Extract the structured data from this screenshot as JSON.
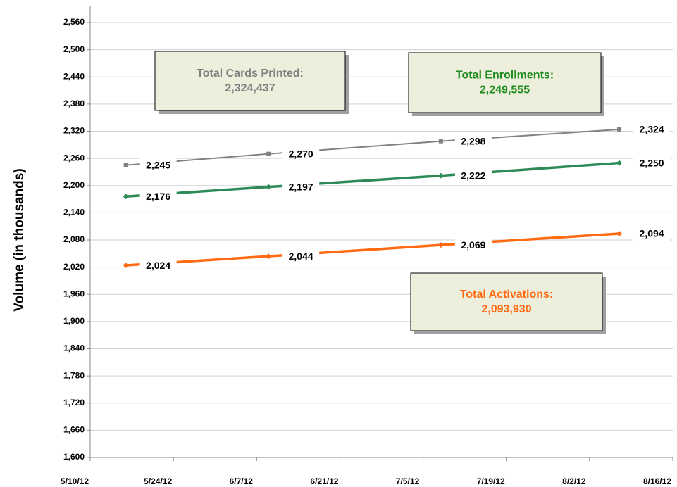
{
  "chart_data": {
    "type": "line",
    "ylabel": "Volume (in thousands)",
    "x": [
      "5/16/12",
      "6/9/12",
      "7/8/12",
      "8/7/12"
    ],
    "xlim": [
      "5/10/12",
      "8/16/12"
    ],
    "xticks": [
      "5/10/12",
      "5/24/12",
      "6/7/12",
      "6/21/12",
      "7/5/12",
      "7/19/12",
      "8/2/12",
      "8/16/12"
    ],
    "ylim": [
      1600,
      2560
    ],
    "yticks": [
      {
        "value": 1600,
        "label": "1,600"
      },
      {
        "value": 1660,
        "label": "1,660"
      },
      {
        "value": 1720,
        "label": "1,720"
      },
      {
        "value": 1780,
        "label": "1,780"
      },
      {
        "value": 1840,
        "label": "1,840"
      },
      {
        "value": 1900,
        "label": "1,900"
      },
      {
        "value": 1960,
        "label": "1,960"
      },
      {
        "value": 2020,
        "label": "2,020"
      },
      {
        "value": 2080,
        "label": "2,080"
      },
      {
        "value": 2140,
        "label": "2,140"
      },
      {
        "value": 2200,
        "label": "2,200"
      },
      {
        "value": 2260,
        "label": "2,260"
      },
      {
        "value": 2320,
        "label": "2,320"
      },
      {
        "value": 2380,
        "label": "2,380"
      },
      {
        "value": 2440,
        "label": "2,440"
      },
      {
        "value": 2500,
        "label": "2,500"
      },
      {
        "value": 2560,
        "label": "2,560"
      }
    ],
    "grid": true,
    "series": [
      {
        "name": "Total Cards Printed",
        "color": "#808080",
        "values": [
          2245,
          2270,
          2298,
          2324
        ],
        "value_labels": [
          "2,245",
          "2,270",
          "2,298",
          "2,324"
        ]
      },
      {
        "name": "Total Enrollments",
        "color": "#2e8b57",
        "values": [
          2176,
          2197,
          2222,
          2250
        ],
        "value_labels": [
          "2,176",
          "2,197",
          "2,222",
          "2,250"
        ]
      },
      {
        "name": "Total Activations",
        "color": "#ff6a13",
        "values": [
          2024,
          2044,
          2069,
          2094
        ],
        "value_labels": [
          "2,024",
          "2,044",
          "2,069",
          "2,094"
        ]
      }
    ],
    "annotations": [
      {
        "text": "Total Cards Printed:",
        "value": "2,324,437",
        "color": "#808080"
      },
      {
        "text": "Total Enrollments:",
        "value": "2,249,555",
        "color": "#1e8c1e"
      },
      {
        "text": "Total Activations:",
        "value": "2,093,930",
        "color": "#ff6a13"
      }
    ]
  }
}
